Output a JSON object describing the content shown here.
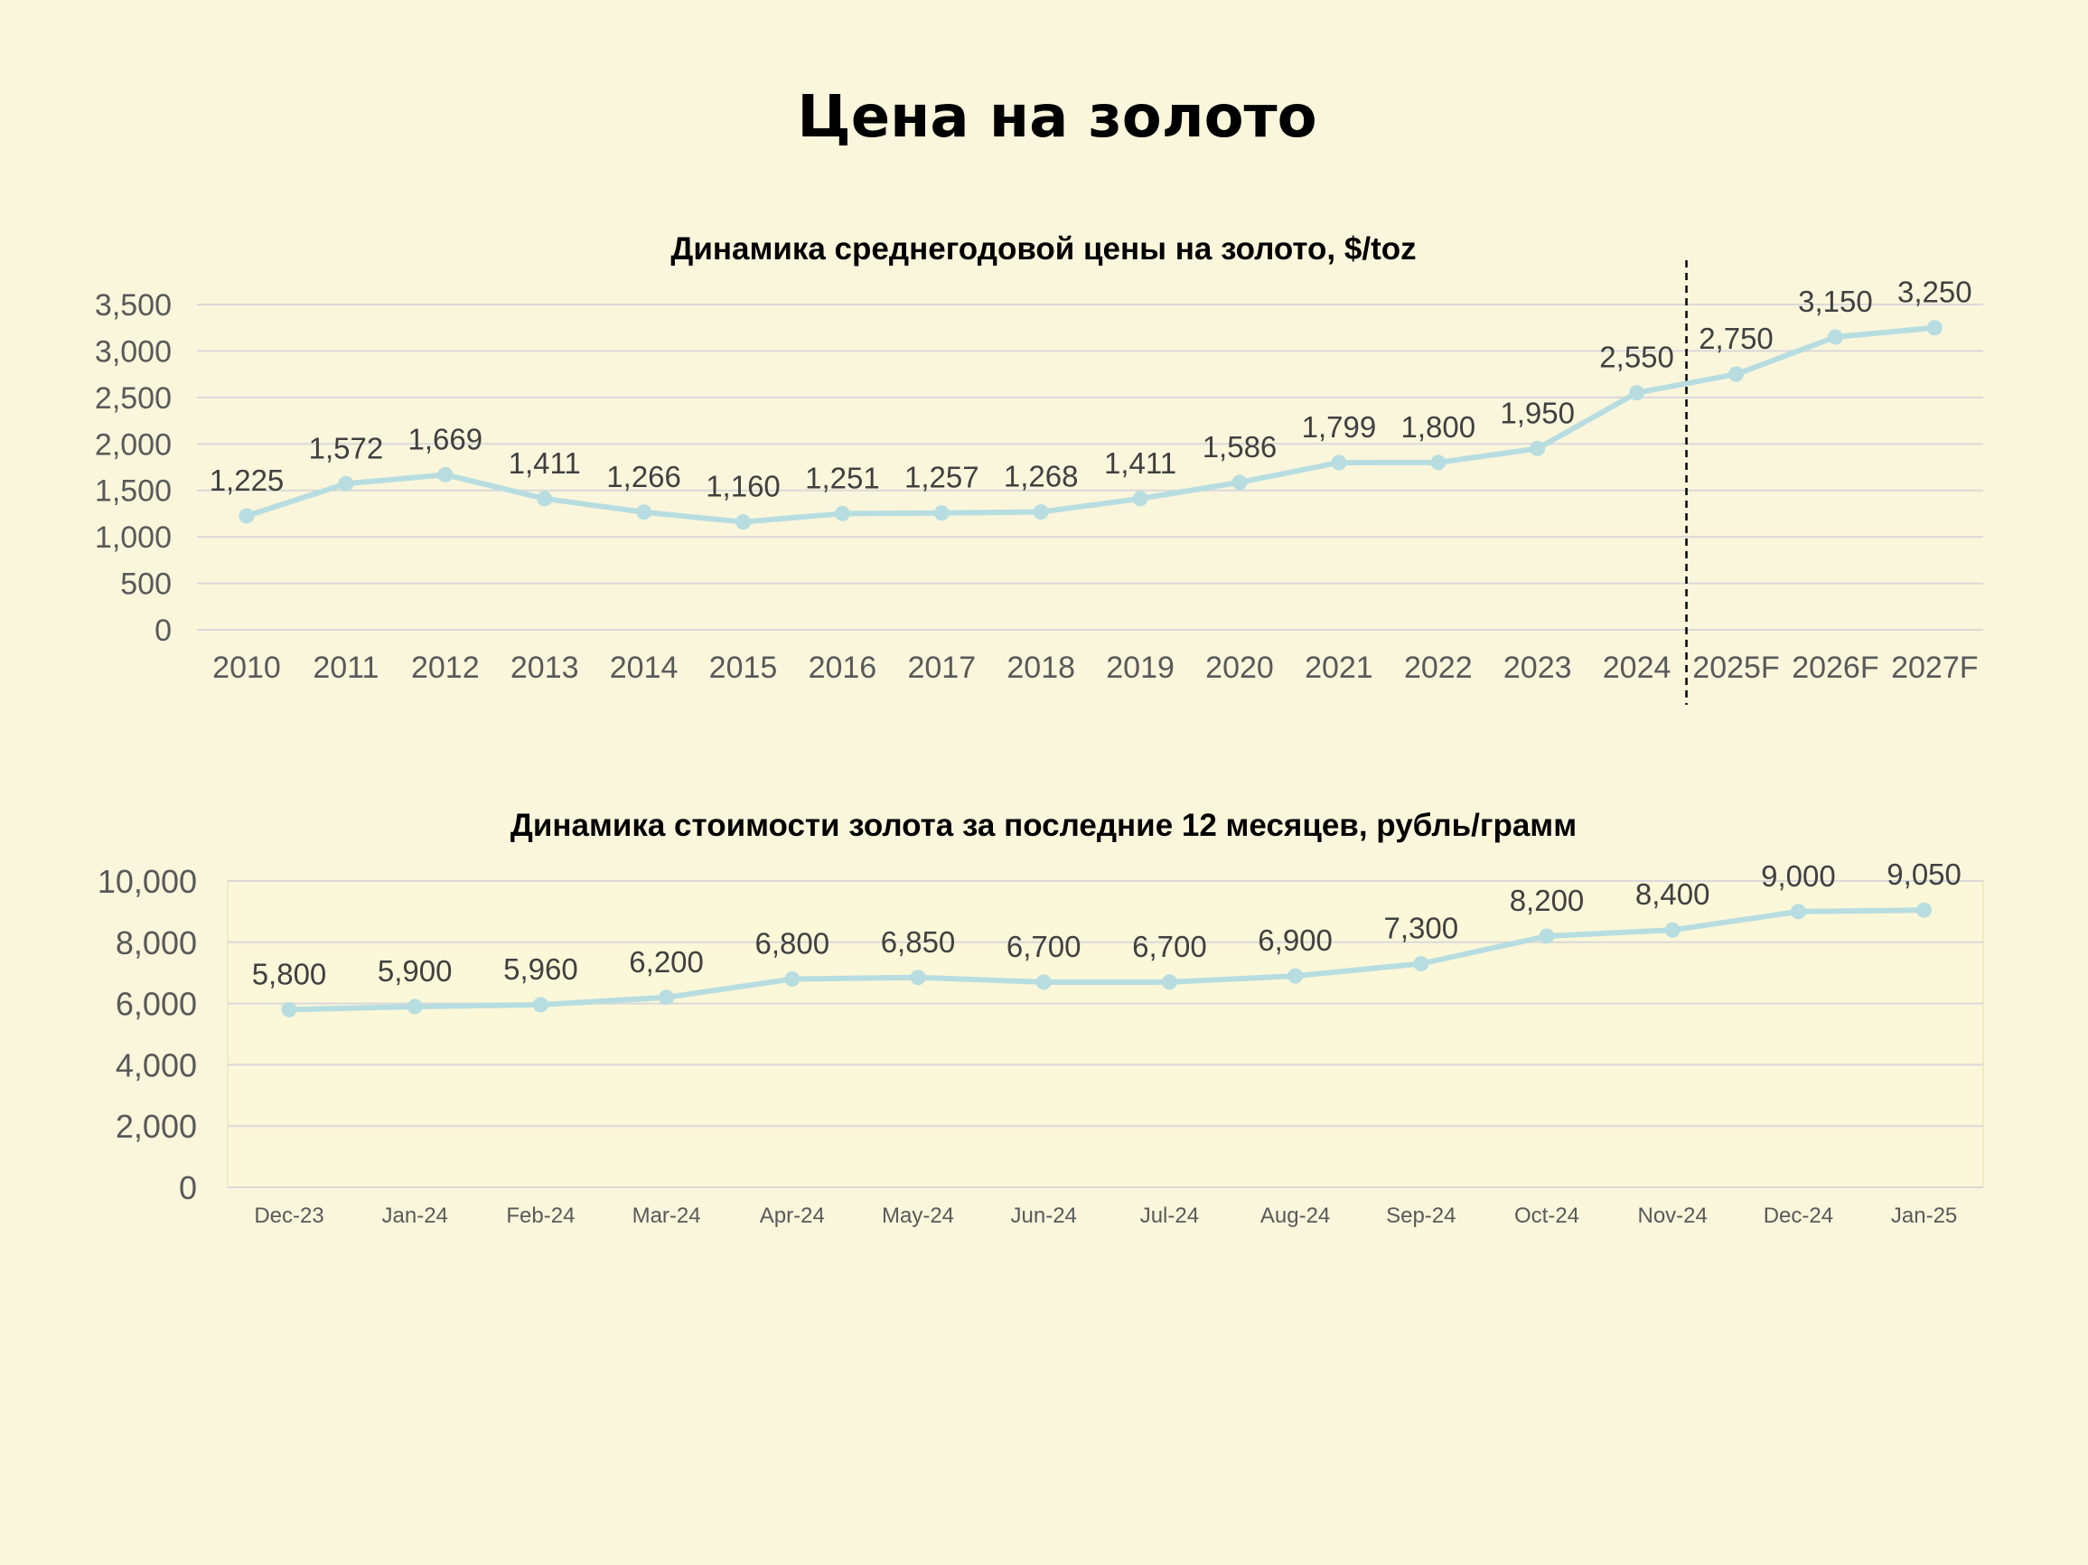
{
  "page": {
    "title": "Цена на золото"
  },
  "colors": {
    "background": "#faf6dc",
    "plot_area_2": "#fbf7d9",
    "line": "#b7dde0",
    "grid": "#d9d9d9",
    "forecast_divider": "#000000"
  },
  "chart_data": [
    {
      "type": "line",
      "title": "Динамика среднегодовой цены на золото, $/toz",
      "xlabel": "",
      "ylabel": "",
      "categories": [
        "2010",
        "2011",
        "2012",
        "2013",
        "2014",
        "2015",
        "2016",
        "2017",
        "2018",
        "2019",
        "2020",
        "2021",
        "2022",
        "2023",
        "2024",
        "2025F",
        "2026F",
        "2027F"
      ],
      "values": [
        1225,
        1572,
        1669,
        1411,
        1266,
        1160,
        1251,
        1257,
        1268,
        1411,
        1586,
        1799,
        1800,
        1950,
        2550,
        2750,
        3150,
        3250
      ],
      "data_labels": [
        "1,225",
        "1,572",
        "1,669",
        "1,411",
        "1,266",
        "1,160",
        "1,251",
        "1,257",
        "1,268",
        "1,411",
        "1,586",
        "1,799",
        "1,800",
        "1,950",
        "2,550",
        "2,750",
        "3,150",
        "3,250"
      ],
      "ylim": [
        0,
        3500
      ],
      "yticks": [
        0,
        500,
        1000,
        1500,
        2000,
        2500,
        3000,
        3500
      ],
      "ytick_labels": [
        "0",
        "500",
        "1,000",
        "1,500",
        "2,000",
        "2,500",
        "3,000",
        "3,500"
      ],
      "grid": true,
      "legend": "none",
      "forecast_divider_after": "2024"
    },
    {
      "type": "line",
      "title": "Динамика стоимости золота за последние 12 месяцев, рубль/грамм",
      "xlabel": "",
      "ylabel": "",
      "categories": [
        "Dec-23",
        "Jan-24",
        "Feb-24",
        "Mar-24",
        "Apr-24",
        "May-24",
        "Jun-24",
        "Jul-24",
        "Aug-24",
        "Sep-24",
        "Oct-24",
        "Nov-24",
        "Dec-24",
        "Jan-25"
      ],
      "values": [
        5800,
        5900,
        5960,
        6200,
        6800,
        6850,
        6700,
        6700,
        6900,
        7300,
        8200,
        8400,
        9000,
        9050
      ],
      "data_labels": [
        "5,800",
        "5,900",
        "5,960",
        "6,200",
        "6,800",
        "6,850",
        "6,700",
        "6,700",
        "6,900",
        "7,300",
        "8,200",
        "8,400",
        "9,000",
        "9,050"
      ],
      "ylim": [
        0,
        10000
      ],
      "yticks": [
        0,
        2000,
        4000,
        6000,
        8000,
        10000
      ],
      "ytick_labels": [
        "0",
        "2,000",
        "4,000",
        "6,000",
        "8,000",
        "10,000"
      ],
      "grid": true,
      "legend": "none"
    }
  ]
}
